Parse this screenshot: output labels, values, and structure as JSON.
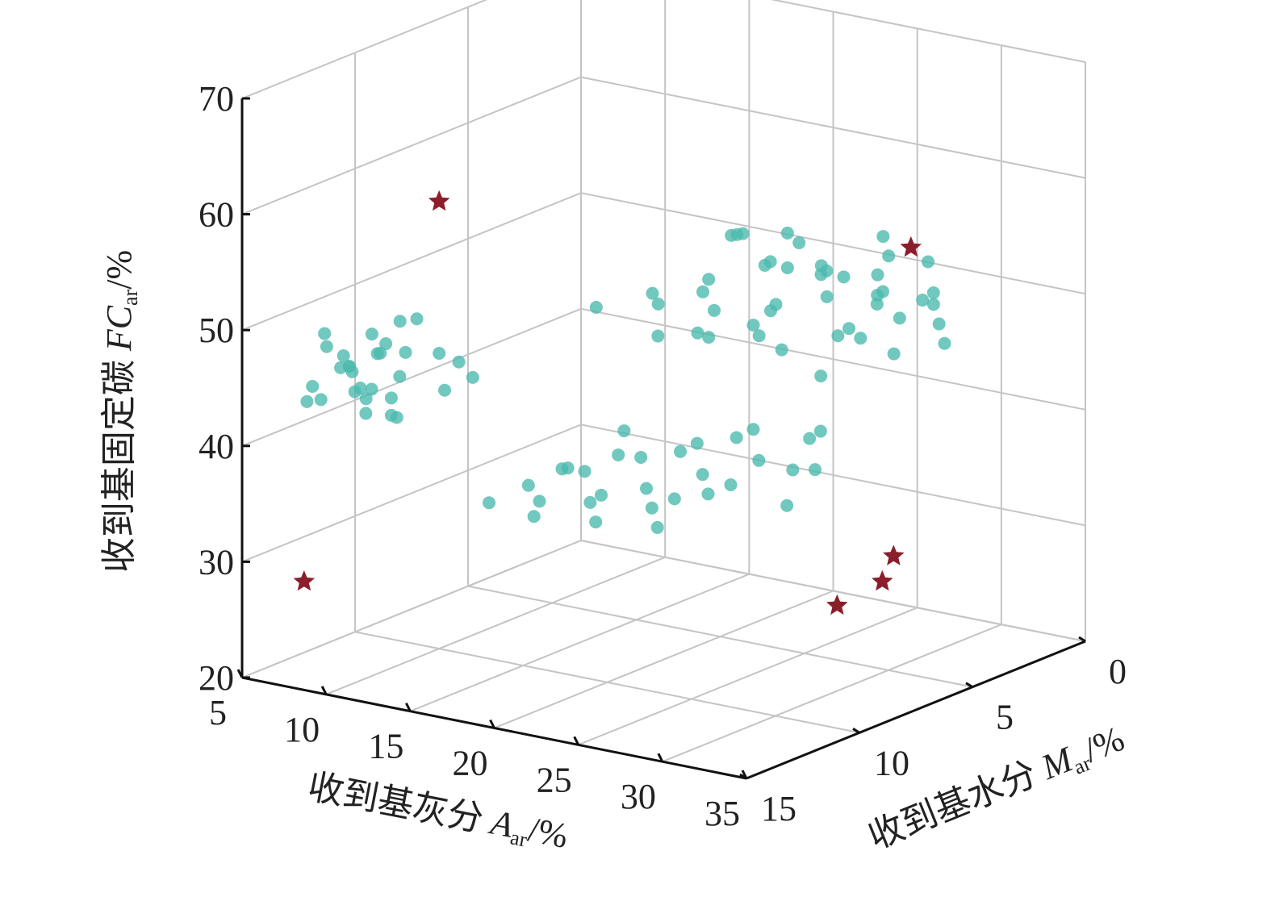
{
  "chart_data": {
    "type": "scatter3d",
    "xlabel": {
      "text": "收到基灰分 ",
      "var": "A",
      "sub": "ar",
      "unit": "/%"
    },
    "ylabel": {
      "text": "收到基水分 ",
      "var": "M",
      "sub": "ar",
      "unit": "/%"
    },
    "zlabel": {
      "text": "收到基固定碳 ",
      "var": "FC",
      "sub": "ar",
      "unit": "/%"
    },
    "xlim": [
      5,
      35
    ],
    "ylim": [
      0,
      15
    ],
    "zlim": [
      20,
      70
    ],
    "xticks": [
      5,
      10,
      15,
      20,
      25,
      30,
      35
    ],
    "yticks": [
      0,
      5,
      10,
      15
    ],
    "zticks": [
      20,
      30,
      40,
      50,
      60,
      70
    ],
    "grid": true,
    "series": [
      {
        "color": "#4dbaae",
        "marker": "circle",
        "x": [
          6,
          7,
          8,
          7,
          6.5,
          8.5,
          7.5,
          9,
          5.5,
          6,
          7,
          8,
          9.5,
          7,
          6,
          8,
          7.5,
          6.5,
          10,
          11,
          5.5,
          8,
          7,
          9,
          6,
          7,
          8.5,
          10.5,
          12,
          5.2
        ],
        "y": [
          11,
          10.5,
          11.5,
          12,
          10,
          11,
          12.5,
          11,
          10.5,
          12,
          11.5,
          10,
          11.5,
          9.5,
          11,
          12,
          10.5,
          13,
          10,
          10.5,
          12.5,
          9.5,
          11,
          12.5,
          10,
          13,
          11,
          9.5,
          10,
          11.5
        ],
        "z": [
          44,
          45,
          43,
          46,
          44.5,
          42,
          45.5,
          44,
          43,
          46.5,
          42.5,
          45,
          41,
          47,
          44,
          43.5,
          46,
          44,
          45.5,
          43,
          42,
          47.5,
          41.5,
          42,
          46,
          43,
          40.5,
          44.5,
          44,
          47
        ]
      },
      {
        "color": "#4dbaae",
        "marker": "circle",
        "x": [
          20,
          22,
          24,
          26,
          28,
          30,
          21,
          23,
          25,
          27,
          29,
          31,
          19,
          22,
          24,
          26,
          28,
          30,
          32,
          20,
          23,
          25,
          27,
          29,
          21,
          24,
          26,
          28,
          22,
          25,
          27,
          30,
          18,
          23,
          26,
          29,
          31,
          24,
          20,
          27,
          25,
          22,
          28,
          30,
          26
        ],
        "y": [
          8,
          7,
          6,
          5,
          4,
          3,
          8.5,
          7.5,
          6.5,
          5.5,
          4.5,
          3.5,
          7,
          6,
          5,
          4,
          3.5,
          3,
          4,
          6,
          5,
          4,
          3,
          2.5,
          5,
          3.5,
          2.5,
          2,
          7,
          6,
          5,
          4.5,
          9,
          8,
          7,
          6,
          5.5,
          5,
          4,
          4,
          7,
          3,
          6.5,
          5.5,
          8
        ],
        "z": [
          52,
          53,
          54,
          53,
          51,
          50,
          49,
          51,
          55,
          54,
          52,
          49,
          50,
          56,
          53,
          52,
          54,
          51,
          48,
          47,
          49,
          50,
          55,
          53,
          55,
          52,
          51,
          49,
          48,
          47,
          48,
          50,
          51,
          53,
          52,
          50,
          48,
          56,
          54,
          47,
          49,
          53,
          46,
          52,
          51
        ]
      },
      {
        "color": "#4dbaae",
        "marker": "circle",
        "x": [
          18,
          20,
          22,
          24,
          26,
          28,
          19,
          21,
          23,
          25,
          27,
          29,
          17,
          20,
          22,
          24,
          26,
          28,
          21,
          23,
          25,
          27,
          19,
          22,
          24,
          26,
          20,
          23,
          25,
          30
        ],
        "y": [
          12,
          11,
          10,
          9,
          8,
          7,
          12.5,
          11.5,
          10.5,
          9.5,
          8.5,
          7.5,
          13,
          12,
          11,
          10,
          9,
          8,
          10,
          9,
          8,
          7,
          11,
          12,
          11,
          10,
          13,
          12.5,
          11.5,
          8
        ],
        "z": [
          38,
          39,
          40,
          41,
          42,
          41,
          36,
          37,
          38,
          39,
          40,
          39,
          37,
          40,
          41,
          37,
          38,
          36,
          42,
          40,
          41,
          38,
          39,
          36,
          37,
          38,
          38,
          39,
          36,
          43
        ]
      },
      {
        "color": "#8b1e2a",
        "marker": "star",
        "x": [
          10,
          6,
          30,
          33,
          33,
          33
        ],
        "y": [
          10,
          13,
          4,
          7,
          7.5,
          9.5
        ],
        "z": [
          58.6,
          27,
          55.7,
          32.3,
          30.5,
          30
        ]
      }
    ]
  }
}
